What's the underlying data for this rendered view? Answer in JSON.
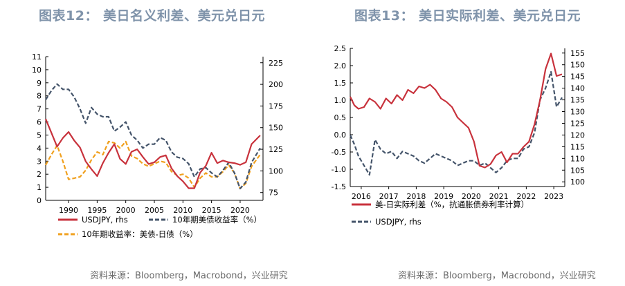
{
  "panels": [
    {
      "title": "图表12：  美日名义利差、美元兑日元",
      "source": "资料来源：Bloomberg，Macrobond，兴业研究"
    },
    {
      "title": "图表13：  美日实际利差、美元兑日元",
      "source": "资料来源：Bloomberg，Macrobond，兴业研究"
    }
  ],
  "chart_data": [
    {
      "type": "line",
      "x_ticks": [
        1990,
        1995,
        2000,
        2005,
        2010,
        2015,
        2020
      ],
      "xlim": [
        1986,
        2024
      ],
      "ylim": [
        0,
        11
      ],
      "y_ticks": [
        0,
        1,
        2,
        3,
        4,
        5,
        6,
        7,
        8,
        9,
        10,
        11
      ],
      "y2lim": [
        66,
        232
      ],
      "y2_ticks": [
        75,
        100,
        125,
        150,
        175,
        200,
        225
      ],
      "legend": [
        "USDJPY, rhs",
        "10年期美债收益率（%）",
        "10年期收益率：美债-日债（%）"
      ],
      "series": [
        {
          "name": "USDJPY, rhs",
          "axis": "right",
          "color": "#c8323c",
          "style": "solid",
          "x": [
            1986,
            1987,
            1988,
            1989,
            1990,
            1991,
            1992,
            1993,
            1994,
            1995,
            1996,
            1997,
            1998,
            1999,
            2000,
            2001,
            2002,
            2003,
            2004,
            2005,
            2006,
            2007,
            2008,
            2009,
            2010,
            2011,
            2012,
            2013,
            2014,
            2015,
            2016,
            2017,
            2018,
            2019,
            2020,
            2021,
            2022,
            2023.5
          ],
          "y": [
            160,
            144,
            128,
            138,
            145,
            135,
            127,
            111,
            102,
            94,
            109,
            121,
            131,
            114,
            108,
            122,
            125,
            116,
            108,
            110,
            116,
            118,
            103,
            94,
            88,
            80,
            80,
            98,
            106,
            121,
            109,
            112,
            110,
            109,
            107,
            110,
            131,
            141
          ]
        },
        {
          "name": "10年期美债收益率（%）",
          "axis": "left",
          "color": "#44546a",
          "style": "dashed",
          "x": [
            1986,
            1987,
            1988,
            1989,
            1990,
            1991,
            1992,
            1993,
            1994,
            1995,
            1996,
            1997,
            1998,
            1999,
            2000,
            2001,
            2002,
            2003,
            2004,
            2005,
            2006,
            2007,
            2008,
            2009,
            2010,
            2011,
            2012,
            2013,
            2014,
            2015,
            2016,
            2017,
            2018,
            2019,
            2020,
            2021,
            2022,
            2023.5
          ],
          "y": [
            7.7,
            8.4,
            8.9,
            8.5,
            8.5,
            7.9,
            7.0,
            5.9,
            7.1,
            6.6,
            6.4,
            6.4,
            5.3,
            5.6,
            6.0,
            5.0,
            4.6,
            4.0,
            4.3,
            4.3,
            4.8,
            4.6,
            3.7,
            3.3,
            3.2,
            2.8,
            1.8,
            2.4,
            2.5,
            2.1,
            1.8,
            2.3,
            2.9,
            2.1,
            0.9,
            1.4,
            2.9,
            4.0
          ]
        },
        {
          "name": "10年期收益率：美债-日债（%）",
          "axis": "left",
          "color": "#f0a01e",
          "style": "dashed",
          "x": [
            1986,
            1987,
            1988,
            1989,
            1990,
            1991,
            1992,
            1993,
            1994,
            1995,
            1996,
            1997,
            1998,
            1999,
            2000,
            2001,
            2002,
            2003,
            2004,
            2005,
            2006,
            2007,
            2008,
            2009,
            2010,
            2011,
            2012,
            2013,
            2014,
            2015,
            2016,
            2017,
            2018,
            2019,
            2020,
            2021,
            2022,
            2023.5
          ],
          "y": [
            2.7,
            3.5,
            4.2,
            3.0,
            1.6,
            1.7,
            1.8,
            2.3,
            3.1,
            3.7,
            3.5,
            4.5,
            4.4,
            4.0,
            4.5,
            3.4,
            3.2,
            2.8,
            2.6,
            2.8,
            3.0,
            2.9,
            2.2,
            1.9,
            2.0,
            1.7,
            1.0,
            1.7,
            2.1,
            1.8,
            1.8,
            2.2,
            2.7,
            2.1,
            0.9,
            1.3,
            2.6,
            3.5
          ]
        }
      ]
    },
    {
      "type": "line",
      "x_ticks": [
        2016,
        2017,
        2018,
        2019,
        2020,
        2021,
        2022,
        2023
      ],
      "xlim": [
        2015.6,
        2023.4
      ],
      "ylim": [
        -1.5,
        2.5
      ],
      "y_ticks": [
        -1.5,
        -1.0,
        -0.5,
        0.0,
        0.5,
        1.0,
        1.5,
        2.0,
        2.5
      ],
      "y_tick_labels": [
        "-1.5",
        "-1.0",
        "-0.5",
        "0.0",
        "0.5",
        "1.0",
        "1.5",
        "2.0",
        "2.5"
      ],
      "y2lim": [
        98,
        157
      ],
      "y2_ticks": [
        100,
        105,
        110,
        115,
        120,
        125,
        130,
        135,
        140,
        145,
        150,
        155
      ],
      "legend": [
        "美-日实际利差（%，抗通胀债券利率计算）",
        "USDJPY, rhs"
      ],
      "series": [
        {
          "name": "美-日实际利差（%，抗通胀债券利率计算）",
          "axis": "left",
          "color": "#c8323c",
          "style": "solid",
          "x": [
            2015.6,
            2015.75,
            2015.9,
            2016.1,
            2016.3,
            2016.5,
            2016.7,
            2016.9,
            2017.1,
            2017.3,
            2017.5,
            2017.7,
            2017.9,
            2018.1,
            2018.3,
            2018.5,
            2018.7,
            2018.9,
            2019.1,
            2019.3,
            2019.5,
            2019.7,
            2019.9,
            2020.1,
            2020.3,
            2020.5,
            2020.7,
            2020.9,
            2021.1,
            2021.3,
            2021.5,
            2021.7,
            2021.9,
            2022.1,
            2022.3,
            2022.5,
            2022.7,
            2022.9,
            2023.1,
            2023.3
          ],
          "y": [
            1.1,
            0.85,
            0.75,
            0.8,
            1.05,
            0.95,
            0.75,
            1.05,
            0.9,
            1.15,
            1.0,
            1.3,
            1.2,
            1.4,
            1.35,
            1.45,
            1.3,
            1.05,
            0.95,
            0.8,
            0.5,
            0.35,
            0.2,
            -0.2,
            -0.9,
            -0.95,
            -0.85,
            -0.6,
            -0.5,
            -0.8,
            -0.55,
            -0.55,
            -0.35,
            -0.2,
            0.3,
            1.0,
            1.9,
            2.35,
            1.7,
            1.75
          ]
        },
        {
          "name": "USDJPY, rhs",
          "axis": "right",
          "color": "#44546a",
          "style": "dashed",
          "x": [
            2015.6,
            2015.75,
            2015.9,
            2016.1,
            2016.3,
            2016.5,
            2016.7,
            2016.9,
            2017.1,
            2017.3,
            2017.5,
            2017.7,
            2017.9,
            2018.1,
            2018.3,
            2018.5,
            2018.7,
            2018.9,
            2019.1,
            2019.3,
            2019.5,
            2019.7,
            2019.9,
            2020.1,
            2020.3,
            2020.5,
            2020.7,
            2020.9,
            2021.1,
            2021.3,
            2021.5,
            2021.7,
            2021.9,
            2022.1,
            2022.3,
            2022.5,
            2022.7,
            2022.9,
            2023.1,
            2023.3
          ],
          "y": [
            120,
            116,
            111,
            107,
            103,
            118,
            114,
            112,
            113,
            110,
            113,
            112,
            111,
            109,
            108,
            110,
            112,
            111,
            110,
            109,
            107,
            108,
            109,
            109,
            107,
            108,
            106,
            104,
            106,
            109,
            110,
            110,
            114,
            115,
            121,
            135,
            140,
            147,
            132,
            136
          ]
        }
      ]
    }
  ]
}
